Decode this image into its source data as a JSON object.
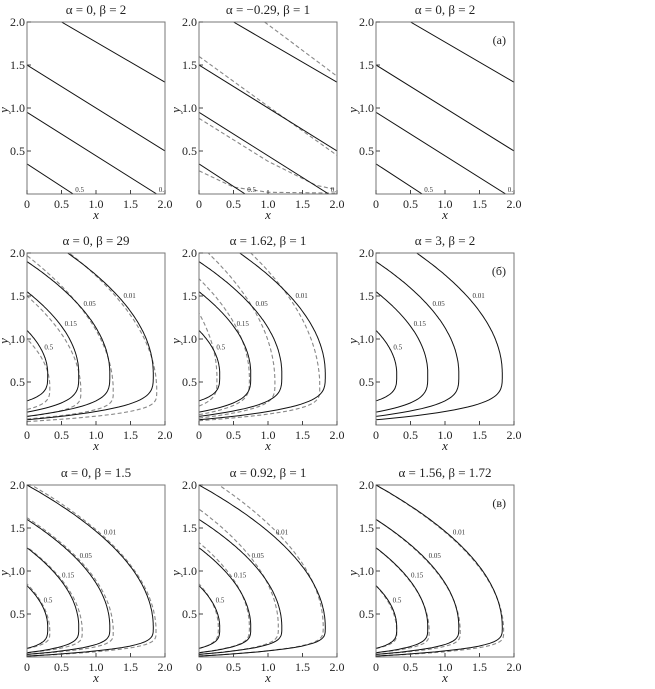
{
  "chart_data": [
    {
      "type": "contour",
      "title": "α = 0, β = 2",
      "xlabel": "x",
      "ylabel": "y",
      "xlim": [
        0,
        2
      ],
      "ylim": [
        0,
        2
      ],
      "xticks": [
        "0",
        "0.5",
        "1.0",
        "1.5",
        "2.0"
      ],
      "yticks": [
        "0.5",
        "1.0",
        "1.5",
        "2.0"
      ],
      "panel_label": "",
      "kind": "lines",
      "solid": [
        {
          "level": "0.5",
          "points": [
            [
              0,
              0.35
            ],
            [
              0.67,
              0
            ]
          ]
        },
        {
          "level": "0.15",
          "points": [
            [
              0,
              0.95
            ],
            [
              1.88,
              0
            ]
          ]
        },
        {
          "level": "0.05",
          "points": [
            [
              0,
              1.5
            ],
            [
              2,
              0.5
            ]
          ]
        },
        {
          "level": "0.01",
          "points": [
            [
              0.5,
              2
            ],
            [
              2,
              1.3
            ]
          ]
        }
      ],
      "dashed": []
    },
    {
      "type": "contour",
      "title": "α = −0.29, β = 1",
      "xlabel": "x",
      "ylabel": "y",
      "xlim": [
        0,
        2
      ],
      "ylim": [
        0,
        2
      ],
      "xticks": [
        "0",
        "0.5",
        "1.0",
        "1.5",
        "2.0"
      ],
      "yticks": [
        "0.5",
        "1.0",
        "1.5",
        "2.0"
      ],
      "panel_label": "",
      "kind": "lines",
      "solid": [
        {
          "level": "0.5",
          "points": [
            [
              0,
              0.35
            ],
            [
              0.67,
              0
            ]
          ]
        },
        {
          "level": "0.15",
          "points": [
            [
              0,
              0.95
            ],
            [
              1.88,
              0
            ]
          ]
        },
        {
          "level": "0.05",
          "points": [
            [
              0,
              1.5
            ],
            [
              2,
              0.5
            ]
          ]
        },
        {
          "level": "0.01",
          "points": [
            [
              0.5,
              2
            ],
            [
              2,
              1.3
            ]
          ]
        }
      ],
      "dashed": [
        {
          "level": "0.01",
          "points": [
            [
              0.95,
              2
            ],
            [
              2,
              1.37
            ]
          ]
        },
        {
          "level": "0.05",
          "points": [
            [
              0,
              1.6
            ],
            [
              1,
              1.02
            ],
            [
              2,
              0.45
            ]
          ]
        },
        {
          "level": "0.15",
          "points": [
            [
              0,
              0.88
            ],
            [
              1,
              0.38
            ],
            [
              1.7,
              0.1
            ],
            [
              2,
              0.05
            ]
          ]
        },
        {
          "level": "0.5",
          "points": [
            [
              0,
              0.27
            ],
            [
              0.5,
              0.08
            ],
            [
              1,
              0.02
            ],
            [
              2,
              0.01
            ]
          ]
        }
      ]
    },
    {
      "type": "contour",
      "title": "α = 0, β = 2",
      "xlabel": "x",
      "ylabel": "y",
      "xlim": [
        0,
        2
      ],
      "ylim": [
        0,
        2
      ],
      "xticks": [
        "0",
        "0.5",
        "1.0",
        "1.5",
        "2.0"
      ],
      "yticks": [
        "0.5",
        "1.0",
        "1.5",
        "2.0"
      ],
      "panel_label": "(а)",
      "kind": "lines",
      "solid": [
        {
          "level": "0.5",
          "points": [
            [
              0,
              0.35
            ],
            [
              0.67,
              0
            ]
          ]
        },
        {
          "level": "0.15",
          "points": [
            [
              0,
              0.95
            ],
            [
              1.88,
              0
            ]
          ]
        },
        {
          "level": "0.05",
          "points": [
            [
              0,
              1.5
            ],
            [
              2,
              0.5
            ]
          ]
        },
        {
          "level": "0.01",
          "points": [
            [
              0.5,
              2
            ],
            [
              2,
              1.3
            ]
          ]
        }
      ],
      "dashed": []
    },
    {
      "type": "contour",
      "title": "α = 0, β = 29",
      "xlabel": "x",
      "ylabel": "y",
      "xlim": [
        0,
        2
      ],
      "ylim": [
        0,
        2
      ],
      "xticks": [
        "0",
        "0.5",
        "1.0",
        "1.5",
        "2.0"
      ],
      "yticks": [
        "0.5",
        "1.0",
        "1.5",
        "2.0"
      ],
      "panel_label": "",
      "kind": "curves",
      "solid": [
        {
          "level": "0.5",
          "xv": 0.3,
          "yv": 0.6,
          "y0": 0.28,
          "ytop": 1.1
        },
        {
          "level": "0.15",
          "xv": 0.75,
          "yv": 0.6,
          "y0": 0.15,
          "ytop": 1.55
        },
        {
          "level": "0.05",
          "xv": 1.2,
          "yv": 0.6,
          "y0": 0.1,
          "ytop": 1.9
        },
        {
          "level": "0.01",
          "xv": 1.83,
          "yv": 0.6,
          "y0": 0.06,
          "ytop": 2.3
        }
      ],
      "dashed": [
        {
          "level": "0.5",
          "xv": 0.33,
          "yv": 0.45,
          "y0": 0.18,
          "ytop": 1.0
        },
        {
          "level": "0.15",
          "xv": 0.78,
          "yv": 0.4,
          "y0": 0.1,
          "ytop": 1.5
        },
        {
          "level": "0.05",
          "xv": 1.25,
          "yv": 0.4,
          "y0": 0.07,
          "ytop": 1.97
        },
        {
          "level": "0.01",
          "xv": 1.88,
          "yv": 0.4,
          "y0": 0.04,
          "ytop": 2.35
        }
      ]
    },
    {
      "type": "contour",
      "title": "α = 1.62, β = 1",
      "xlabel": "x",
      "ylabel": "y",
      "xlim": [
        0,
        2
      ],
      "ylim": [
        0,
        2
      ],
      "xticks": [
        "0",
        "0.5",
        "1.0",
        "1.5",
        "2.0"
      ],
      "yticks": [
        "0.5",
        "1.0",
        "1.5",
        "2.0"
      ],
      "panel_label": "",
      "kind": "curves",
      "solid": [
        {
          "level": "0.5",
          "xv": 0.3,
          "yv": 0.6,
          "y0": 0.28,
          "ytop": 1.1
        },
        {
          "level": "0.15",
          "xv": 0.75,
          "yv": 0.6,
          "y0": 0.15,
          "ytop": 1.55
        },
        {
          "level": "0.05",
          "xv": 1.2,
          "yv": 0.6,
          "y0": 0.1,
          "ytop": 1.9
        },
        {
          "level": "0.01",
          "xv": 1.83,
          "yv": 0.6,
          "y0": 0.06,
          "ytop": 2.3
        }
      ],
      "dashed": [
        {
          "level": "0.5",
          "xv": 0.26,
          "yv": 0.55,
          "y0": 0.22,
          "ytop": 1.3
        },
        {
          "level": "0.15",
          "xv": 0.73,
          "yv": 0.55,
          "y0": 0.12,
          "ytop": 1.7
        },
        {
          "level": "0.05",
          "xv": 1.1,
          "yv": 0.5,
          "y0": 0.08,
          "ytop": 2.1
        },
        {
          "level": "0.01",
          "xv": 1.75,
          "yv": 0.45,
          "y0": 0.05,
          "ytop": 2.5
        }
      ]
    },
    {
      "type": "contour",
      "title": "α = 3, β = 2",
      "xlabel": "x",
      "ylabel": "y",
      "xlim": [
        0,
        2
      ],
      "ylim": [
        0,
        2
      ],
      "xticks": [
        "0",
        "0.5",
        "1.0",
        "1.5",
        "2.0"
      ],
      "yticks": [
        "0.5",
        "1.0",
        "1.5",
        "2.0"
      ],
      "panel_label": "(б)",
      "kind": "curves",
      "solid": [
        {
          "level": "0.5",
          "xv": 0.3,
          "yv": 0.6,
          "y0": 0.28,
          "ytop": 1.1
        },
        {
          "level": "0.15",
          "xv": 0.75,
          "yv": 0.6,
          "y0": 0.15,
          "ytop": 1.55
        },
        {
          "level": "0.05",
          "xv": 1.2,
          "yv": 0.6,
          "y0": 0.1,
          "ytop": 1.9
        },
        {
          "level": "0.01",
          "xv": 1.83,
          "yv": 0.6,
          "y0": 0.06,
          "ytop": 2.3
        }
      ],
      "dashed": []
    },
    {
      "type": "contour",
      "title": "α = 0, β = 1.5",
      "xlabel": "x",
      "ylabel": "y",
      "xlim": [
        0,
        2
      ],
      "ylim": [
        0,
        2
      ],
      "xticks": [
        "0",
        "0.5",
        "1.0",
        "1.5",
        "2.0"
      ],
      "yticks": [
        "0.5",
        "1.0",
        "1.5",
        "2.0"
      ],
      "panel_label": "",
      "kind": "curves",
      "solid": [
        {
          "level": "0.5",
          "xv": 0.3,
          "yv": 0.35,
          "y0": 0.1,
          "ytop": 0.83
        },
        {
          "level": "0.15",
          "xv": 0.75,
          "yv": 0.35,
          "y0": 0.05,
          "ytop": 1.27
        },
        {
          "level": "0.05",
          "xv": 1.2,
          "yv": 0.35,
          "y0": 0.03,
          "ytop": 1.6
        },
        {
          "level": "0.01",
          "xv": 1.83,
          "yv": 0.35,
          "y0": 0.01,
          "ytop": 2.0
        }
      ],
      "dashed": [
        {
          "level": "0.5",
          "xv": 0.33,
          "yv": 0.3,
          "y0": 0.1,
          "ytop": 0.85
        },
        {
          "level": "0.15",
          "xv": 0.8,
          "yv": 0.3,
          "y0": 0.05,
          "ytop": 1.28
        },
        {
          "level": "0.05",
          "xv": 1.25,
          "yv": 0.3,
          "y0": 0.03,
          "ytop": 1.62
        },
        {
          "level": "0.01",
          "xv": 1.87,
          "yv": 0.3,
          "y0": 0.01,
          "ytop": 2.03
        }
      ]
    },
    {
      "type": "contour",
      "title": "α = 0.92, β = 1",
      "xlabel": "x",
      "ylabel": "y",
      "xlim": [
        0,
        2
      ],
      "ylim": [
        0,
        2
      ],
      "xticks": [
        "0",
        "0.5",
        "1.0",
        "1.5",
        "2.0"
      ],
      "yticks": [
        "0.5",
        "1.0",
        "1.5",
        "2.0"
      ],
      "panel_label": "",
      "kind": "curves",
      "solid": [
        {
          "level": "0.5",
          "xv": 0.3,
          "yv": 0.35,
          "y0": 0.1,
          "ytop": 0.83
        },
        {
          "level": "0.15",
          "xv": 0.75,
          "yv": 0.35,
          "y0": 0.05,
          "ytop": 1.27
        },
        {
          "level": "0.05",
          "xv": 1.2,
          "yv": 0.35,
          "y0": 0.03,
          "ytop": 1.6
        },
        {
          "level": "0.01",
          "xv": 1.83,
          "yv": 0.35,
          "y0": 0.01,
          "ytop": 2.0
        }
      ],
      "dashed": [
        {
          "level": "0.5",
          "xv": 0.28,
          "yv": 0.35,
          "y0": 0.1,
          "ytop": 0.85
        },
        {
          "level": "0.15",
          "xv": 0.73,
          "yv": 0.35,
          "y0": 0.05,
          "ytop": 1.33
        },
        {
          "level": "0.05",
          "xv": 1.15,
          "yv": 0.35,
          "y0": 0.03,
          "ytop": 1.72
        },
        {
          "level": "0.01",
          "xv": 1.8,
          "yv": 0.35,
          "y0": 0.01,
          "ytop": 2.15
        }
      ]
    },
    {
      "type": "contour",
      "title": "α = 1.56, β = 1.72",
      "xlabel": "x",
      "ylabel": "y",
      "xlim": [
        0,
        2
      ],
      "ylim": [
        0,
        2
      ],
      "xticks": [
        "0",
        "0.5",
        "1.0",
        "1.5",
        "2.0"
      ],
      "yticks": [
        "0.5",
        "1.0",
        "1.5",
        "2.0"
      ],
      "panel_label": "(в)",
      "kind": "curves",
      "solid": [
        {
          "level": "0.5",
          "xv": 0.3,
          "yv": 0.35,
          "y0": 0.1,
          "ytop": 0.83
        },
        {
          "level": "0.15",
          "xv": 0.75,
          "yv": 0.35,
          "y0": 0.05,
          "ytop": 1.27
        },
        {
          "level": "0.05",
          "xv": 1.2,
          "yv": 0.35,
          "y0": 0.03,
          "ytop": 1.6
        },
        {
          "level": "0.01",
          "xv": 1.83,
          "yv": 0.35,
          "y0": 0.01,
          "ytop": 2.0
        }
      ],
      "dashed": [
        {
          "level": "0.5",
          "xv": 0.3,
          "yv": 0.3,
          "y0": 0.1,
          "ytop": 0.83
        },
        {
          "level": "0.15",
          "xv": 0.77,
          "yv": 0.3,
          "y0": 0.05,
          "ytop": 1.27
        },
        {
          "level": "0.05",
          "xv": 1.22,
          "yv": 0.3,
          "y0": 0.03,
          "ytop": 1.6
        },
        {
          "level": "0.01",
          "xv": 1.85,
          "yv": 0.3,
          "y0": 0.01,
          "ytop": 2.0
        }
      ]
    }
  ]
}
